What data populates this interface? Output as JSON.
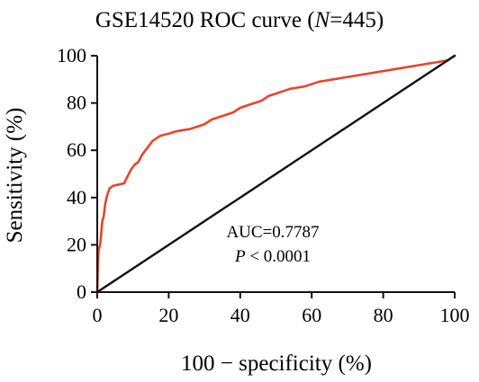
{
  "chart_data": {
    "type": "line",
    "title": {
      "prefix": "GSE14520 ROC curve (",
      "italic": "N",
      "suffix": "=445)"
    },
    "xlabel": "100 − specificity (%)",
    "ylabel": "Sensitivity (%)",
    "xlim": [
      0,
      100
    ],
    "ylim": [
      0,
      100
    ],
    "xticks": [
      0,
      20,
      40,
      60,
      80,
      100
    ],
    "yticks": [
      0,
      20,
      40,
      60,
      80,
      100
    ],
    "grid": false,
    "legend": "none",
    "annotations": {
      "auc": "AUC=0.7787",
      "p_italic": "P",
      "p_rest": " < 0.0001"
    },
    "series": [
      {
        "color": "#e8452c",
        "x": [
          0,
          0.2,
          0.4,
          0.8,
          1.0,
          1.4,
          1.8,
          2.2,
          2.6,
          3.0,
          3.5,
          4.5,
          6.0,
          7.5,
          8.5,
          9.5,
          10.5,
          11.5,
          12.5,
          13.5,
          14.5,
          15.5,
          16.5,
          17.5,
          18.5,
          20.0,
          22.0,
          24.0,
          26.0,
          28.0,
          30.0,
          32.0,
          34.0,
          36.0,
          38.0,
          40.0,
          42.0,
          44.0,
          46.0,
          48.0,
          50.0,
          52.0,
          54.0,
          56.0,
          58.0,
          60.0,
          62.0,
          64.0,
          66.0,
          68.0,
          70.0,
          72.0,
          74.0,
          76.0,
          78.0,
          80.0,
          82.0,
          84.0,
          86.0,
          88.0,
          90.0,
          92.0,
          94.0,
          96.0,
          98.0,
          99.0,
          100
        ],
        "y": [
          0,
          12,
          18,
          20,
          23,
          30,
          32,
          37,
          40,
          42,
          44,
          45,
          45.5,
          46,
          49,
          52,
          54,
          55,
          58,
          60,
          62,
          64,
          65,
          66,
          66.5,
          67,
          68,
          68.5,
          69,
          70,
          71,
          73,
          74,
          75,
          76,
          78,
          79,
          80,
          81,
          83,
          84,
          85,
          86,
          86.5,
          87,
          88,
          89,
          89.5,
          90,
          90.5,
          91,
          91.5,
          92,
          92.5,
          93,
          93.5,
          94,
          94.5,
          95,
          95.5,
          96,
          96.5,
          97,
          97.5,
          98,
          99,
          100
        ]
      },
      {
        "color": "#111111",
        "x": [
          0,
          100
        ],
        "y": [
          0,
          100
        ]
      }
    ]
  }
}
